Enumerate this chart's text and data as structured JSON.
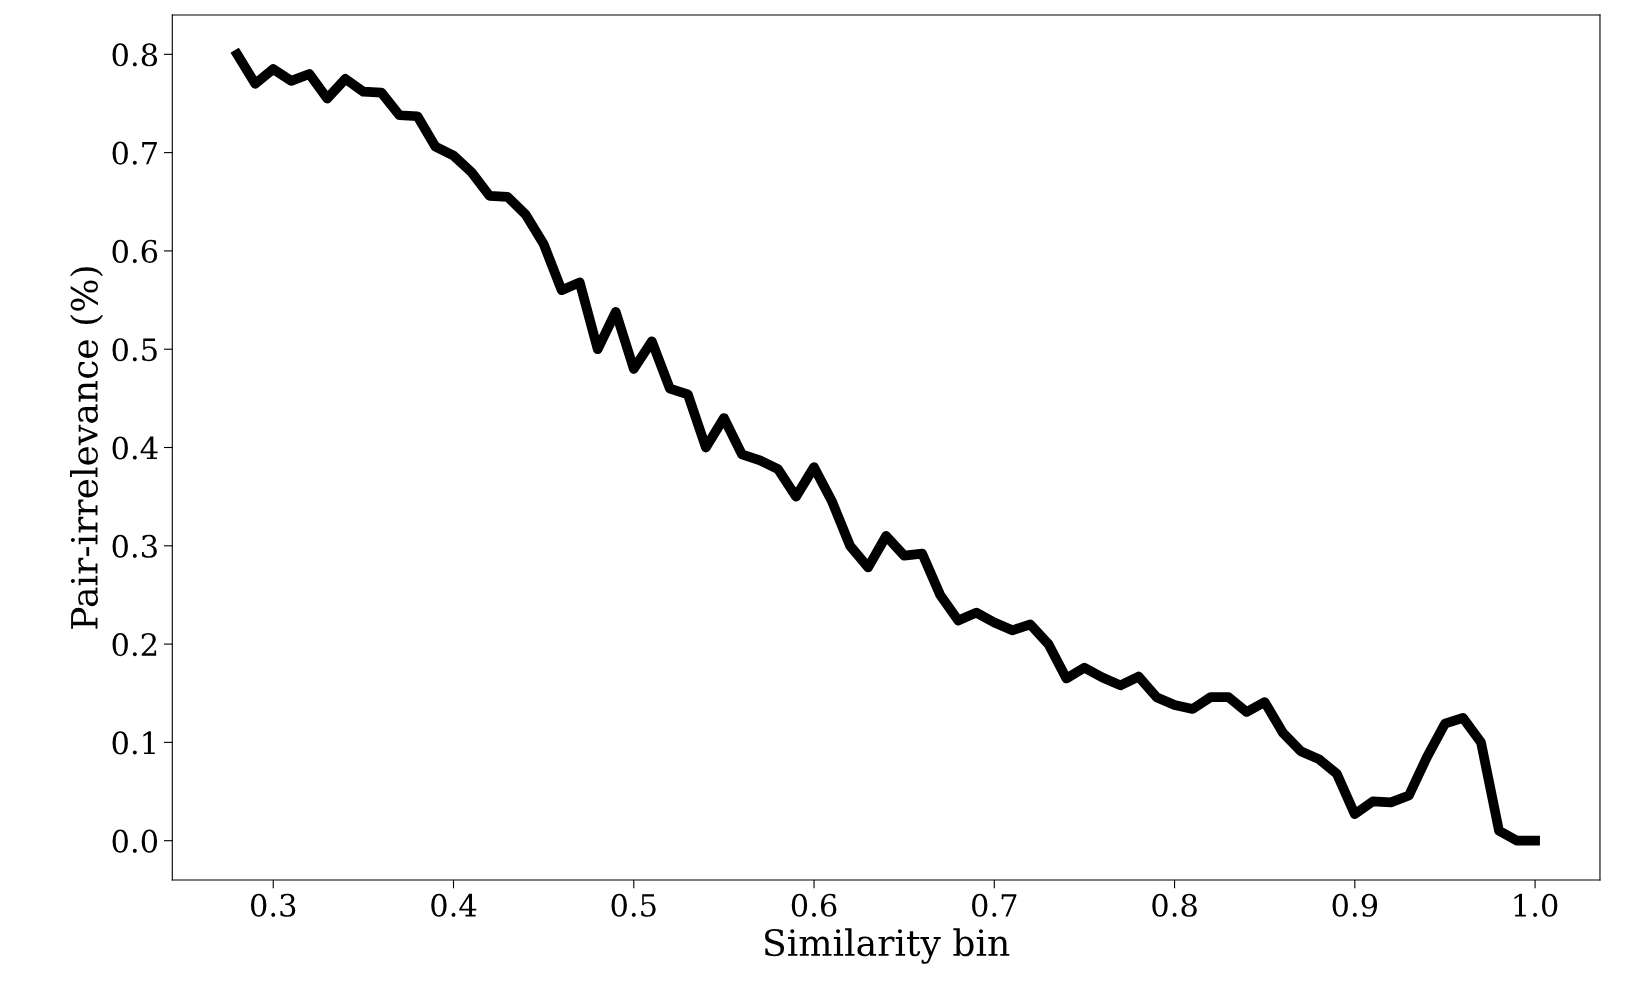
{
  "chart_data": {
    "type": "line",
    "xlabel": "Similarity bin",
    "ylabel": "Pair-irrelevance (%)",
    "x": [
      0.28,
      0.29,
      0.3,
      0.31,
      0.32,
      0.33,
      0.34,
      0.35,
      0.36,
      0.37,
      0.38,
      0.39,
      0.4,
      0.41,
      0.42,
      0.43,
      0.44,
      0.45,
      0.46,
      0.47,
      0.48,
      0.49,
      0.5,
      0.51,
      0.52,
      0.53,
      0.54,
      0.55,
      0.56,
      0.57,
      0.58,
      0.59,
      0.6,
      0.61,
      0.62,
      0.63,
      0.64,
      0.65,
      0.66,
      0.67,
      0.68,
      0.69,
      0.7,
      0.71,
      0.72,
      0.73,
      0.74,
      0.75,
      0.76,
      0.77,
      0.78,
      0.79,
      0.8,
      0.81,
      0.82,
      0.83,
      0.84,
      0.85,
      0.86,
      0.87,
      0.88,
      0.89,
      0.9,
      0.91,
      0.92,
      0.93,
      0.94,
      0.95,
      0.96,
      0.97,
      0.98,
      0.99,
      1.0
    ],
    "series": [
      {
        "color": "#000000",
        "values": [
          0.8,
          0.77,
          0.785,
          0.773,
          0.78,
          0.755,
          0.775,
          0.762,
          0.761,
          0.738,
          0.737,
          0.706,
          0.697,
          0.68,
          0.656,
          0.655,
          0.637,
          0.607,
          0.56,
          0.568,
          0.5,
          0.538,
          0.48,
          0.508,
          0.46,
          0.454,
          0.4,
          0.43,
          0.393,
          0.387,
          0.378,
          0.35,
          0.38,
          0.345,
          0.3,
          0.278,
          0.31,
          0.29,
          0.292,
          0.25,
          0.224,
          0.232,
          0.222,
          0.214,
          0.22,
          0.2,
          0.165,
          0.176,
          0.166,
          0.158,
          0.167,
          0.146,
          0.138,
          0.134,
          0.146,
          0.146,
          0.131,
          0.141,
          0.11,
          0.091,
          0.083,
          0.068,
          0.027,
          0.04,
          0.039,
          0.046,
          0.085,
          0.119,
          0.125,
          0.1,
          0.01,
          0.0,
          0.0
        ]
      }
    ],
    "xlim": [
      0.244,
      1.036
    ],
    "xticks": [
      {
        "value": 0.3,
        "label": "0.3"
      },
      {
        "value": 0.4,
        "label": "0.4"
      },
      {
        "value": 0.5,
        "label": "0.5"
      },
      {
        "value": 0.6,
        "label": "0.6"
      },
      {
        "value": 0.7,
        "label": "0.7"
      },
      {
        "value": 0.8,
        "label": "0.8"
      },
      {
        "value": 0.9,
        "label": "0.9"
      },
      {
        "value": 1.0,
        "label": "1.0"
      }
    ],
    "ylim": [
      -0.04,
      0.84
    ],
    "yticks": [
      {
        "value": 0.0,
        "label": "0.0"
      },
      {
        "value": 0.1,
        "label": "0.1"
      },
      {
        "value": 0.2,
        "label": "0.2"
      },
      {
        "value": 0.3,
        "label": "0.3"
      },
      {
        "value": 0.4,
        "label": "0.4"
      },
      {
        "value": 0.5,
        "label": "0.5"
      },
      {
        "value": 0.6,
        "label": "0.6"
      },
      {
        "value": 0.7,
        "label": "0.7"
      },
      {
        "value": 0.8,
        "label": "0.8"
      }
    ],
    "grid": false,
    "legend": false,
    "marker": "none",
    "line_style": "solid"
  }
}
